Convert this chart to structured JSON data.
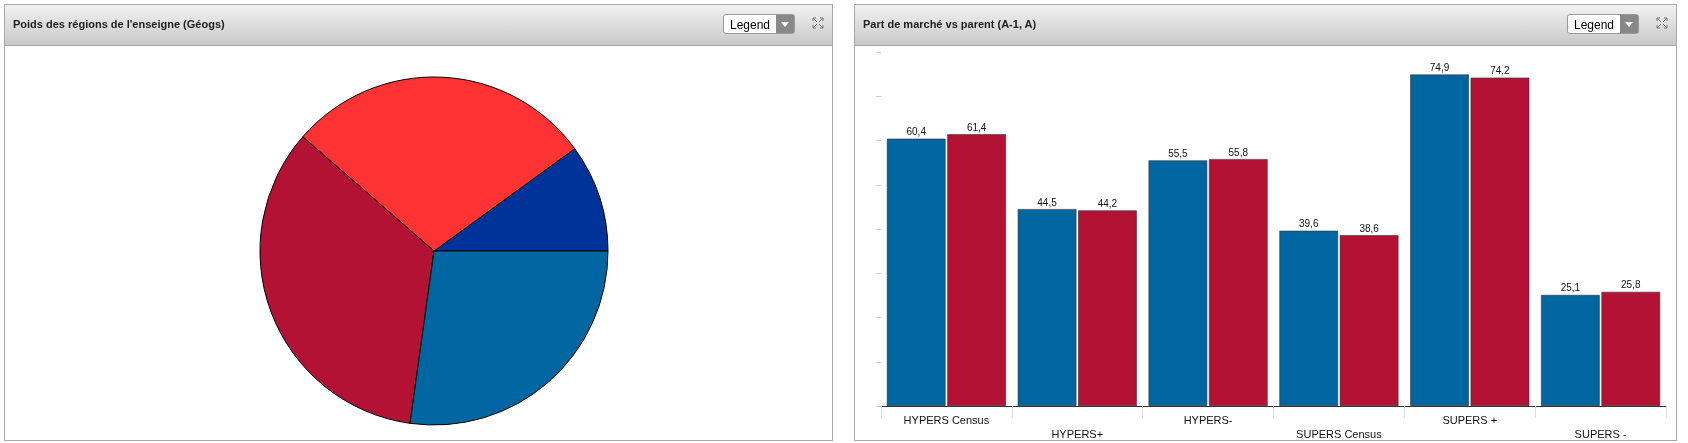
{
  "chart_data": [
    {
      "type": "pie",
      "title": "Poids des régions de l'enseigne (Géogs)",
      "categories": [
        null,
        null,
        null,
        null
      ],
      "values": [
        10,
        28.6,
        34.2,
        27.2
      ],
      "colors": [
        "#003399",
        "#ff3333",
        "#b31234",
        "#0066a1"
      ],
      "annotations": [
        "Legend"
      ]
    },
    {
      "type": "bar",
      "title": "Part de marché vs parent (A-1, A)",
      "categories": [
        "HYPERS Census",
        "HYPERS+",
        "HYPERS-",
        "SUPERS Census",
        "SUPERS +",
        "SUPERS -"
      ],
      "series": [
        {
          "color": "#0066a1",
          "values": [
            60.4,
            44.5,
            55.5,
            39.6,
            74.9,
            25.1
          ],
          "value_labels": [
            "60,4",
            "44,5",
            "55,5",
            "39,6",
            "74,9",
            "25,1"
          ]
        },
        {
          "color": "#b31234",
          "values": [
            61.4,
            44.2,
            55.8,
            38.6,
            74.2,
            25.8
          ],
          "value_labels": [
            "61,4",
            "44,2",
            "55,8",
            "38,6",
            "74,2",
            "25,8"
          ]
        }
      ],
      "tick_labels": "x",
      "annotations": [
        "Legend"
      ]
    }
  ]
}
